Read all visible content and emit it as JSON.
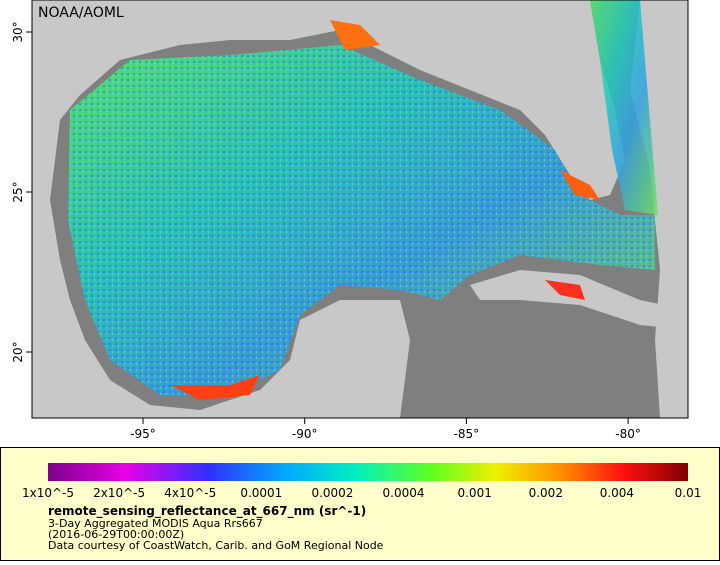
{
  "header": {
    "title": "NOAA/AOML"
  },
  "axes": {
    "longitude_labels": [
      "-95°",
      "-90°",
      "-85°",
      "-80°"
    ],
    "latitude_labels": [
      "30°",
      "25°",
      "20°"
    ]
  },
  "legend": {
    "ticks": [
      "1x10^-5",
      "2x10^-5",
      "4x10^-5",
      "0.0001",
      "0.0002",
      "0.0004",
      "0.001",
      "0.002",
      "0.004",
      "0.01"
    ],
    "variable": "remote_sensing_reflectance_at_667_nm (sr^-1)",
    "lines": [
      "3-Day Aggregated MODIS Aqua Rrs667",
      "(2016-06-29T00:00:00Z)",
      "Data courtesy of CoastWatch, Carib. and GoM Regional Node"
    ]
  }
}
